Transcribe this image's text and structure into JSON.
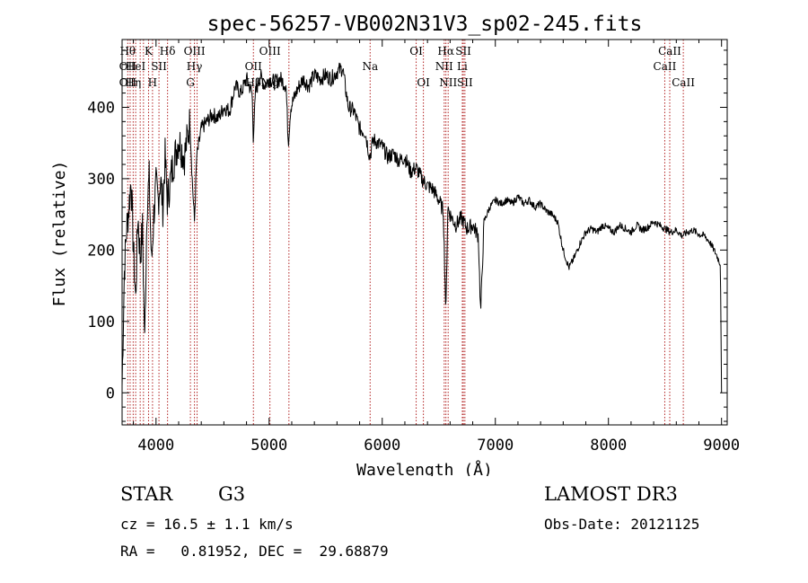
{
  "chart_data": {
    "type": "line",
    "title": "spec-56257-VB002N31V3_sp02-245.fits",
    "xlabel": "Wavelength (Å)",
    "ylabel": "Flux (relative)",
    "xlim": [
      3700,
      9050
    ],
    "ylim": [
      -45,
      495
    ],
    "xticks": [
      4000,
      5000,
      6000,
      7000,
      8000,
      9000
    ],
    "yticks": [
      0,
      100,
      200,
      300,
      400
    ],
    "line_color": "#000000",
    "marker_color": "#b22222",
    "series": [
      {
        "values": [
          [
            3700,
            10
          ],
          [
            3720,
            170
          ],
          [
            3740,
            230
          ],
          [
            3760,
            260
          ],
          [
            3780,
            300
          ],
          [
            3800,
            200
          ],
          [
            3820,
            130
          ],
          [
            3840,
            250
          ],
          [
            3860,
            190
          ],
          [
            3880,
            230
          ],
          [
            3900,
            70
          ],
          [
            3920,
            260
          ],
          [
            3940,
            300
          ],
          [
            3960,
            180
          ],
          [
            3980,
            250
          ],
          [
            4000,
            290
          ],
          [
            4020,
            270
          ],
          [
            4040,
            300
          ],
          [
            4060,
            260
          ],
          [
            4080,
            330
          ],
          [
            4100,
            270
          ],
          [
            4150,
            320
          ],
          [
            4200,
            355
          ],
          [
            4250,
            330
          ],
          [
            4300,
            380
          ],
          [
            4320,
            300
          ],
          [
            4340,
            240
          ],
          [
            4360,
            330
          ],
          [
            4400,
            370
          ],
          [
            4450,
            380
          ],
          [
            4500,
            390
          ],
          [
            4550,
            385
          ],
          [
            4600,
            400
          ],
          [
            4650,
            395
          ],
          [
            4700,
            430
          ],
          [
            4750,
            420
          ],
          [
            4800,
            440
          ],
          [
            4850,
            420
          ],
          [
            4860,
            360
          ],
          [
            4880,
            420
          ],
          [
            4920,
            445
          ],
          [
            4960,
            430
          ],
          [
            5000,
            440
          ],
          [
            5050,
            435
          ],
          [
            5100,
            440
          ],
          [
            5150,
            430
          ],
          [
            5170,
            350
          ],
          [
            5190,
            400
          ],
          [
            5250,
            425
          ],
          [
            5300,
            440
          ],
          [
            5350,
            430
          ],
          [
            5400,
            445
          ],
          [
            5450,
            440
          ],
          [
            5500,
            445
          ],
          [
            5550,
            440
          ],
          [
            5600,
            450
          ],
          [
            5650,
            455
          ],
          [
            5700,
            400
          ],
          [
            5750,
            395
          ],
          [
            5800,
            370
          ],
          [
            5850,
            365
          ],
          [
            5890,
            330
          ],
          [
            5920,
            355
          ],
          [
            6000,
            345
          ],
          [
            6050,
            330
          ],
          [
            6100,
            335
          ],
          [
            6150,
            325
          ],
          [
            6200,
            330
          ],
          [
            6250,
            310
          ],
          [
            6300,
            315
          ],
          [
            6350,
            300
          ],
          [
            6400,
            290
          ],
          [
            6450,
            285
          ],
          [
            6500,
            270
          ],
          [
            6540,
            255
          ],
          [
            6563,
            110
          ],
          [
            6580,
            260
          ],
          [
            6600,
            250
          ],
          [
            6650,
            235
          ],
          [
            6700,
            245
          ],
          [
            6750,
            230
          ],
          [
            6800,
            235
          ],
          [
            6850,
            220
          ],
          [
            6870,
            110
          ],
          [
            6900,
            240
          ],
          [
            6950,
            260
          ],
          [
            7000,
            270
          ],
          [
            7050,
            265
          ],
          [
            7100,
            270
          ],
          [
            7150,
            265
          ],
          [
            7200,
            275
          ],
          [
            7250,
            265
          ],
          [
            7300,
            270
          ],
          [
            7350,
            260
          ],
          [
            7400,
            265
          ],
          [
            7450,
            255
          ],
          [
            7500,
            250
          ],
          [
            7550,
            240
          ],
          [
            7600,
            200
          ],
          [
            7650,
            175
          ],
          [
            7700,
            190
          ],
          [
            7750,
            210
          ],
          [
            7800,
            225
          ],
          [
            7850,
            230
          ],
          [
            7900,
            225
          ],
          [
            7950,
            235
          ],
          [
            8000,
            230
          ],
          [
            8050,
            225
          ],
          [
            8100,
            235
          ],
          [
            8150,
            230
          ],
          [
            8200,
            225
          ],
          [
            8250,
            235
          ],
          [
            8300,
            228
          ],
          [
            8350,
            232
          ],
          [
            8400,
            240
          ],
          [
            8450,
            235
          ],
          [
            8500,
            230
          ],
          [
            8550,
            225
          ],
          [
            8600,
            228
          ],
          [
            8650,
            220
          ],
          [
            8700,
            225
          ],
          [
            8750,
            228
          ],
          [
            8800,
            222
          ],
          [
            8850,
            220
          ],
          [
            8900,
            210
          ],
          [
            8950,
            195
          ],
          [
            8990,
            180
          ],
          [
            9000,
            0
          ]
        ]
      }
    ],
    "lines": [
      {
        "wl": 3750,
        "top": "Hθ",
        "mid": "OII",
        "low": "OII"
      },
      {
        "wl": 3771,
        "top": "",
        "mid": "",
        "low": ""
      },
      {
        "wl": 3798,
        "top": "",
        "mid": "",
        "low": "Hη"
      },
      {
        "wl": 3820,
        "top": "",
        "mid": "HeI",
        "low": ""
      },
      {
        "wl": 3860,
        "top": "",
        "mid": "",
        "low": ""
      },
      {
        "wl": 3889,
        "top": "",
        "mid": "",
        "low": ""
      },
      {
        "wl": 3934,
        "top": "K",
        "mid": "",
        "low": ""
      },
      {
        "wl": 3969,
        "top": "",
        "mid": "",
        "low": "H"
      },
      {
        "wl": 4026,
        "top": "",
        "mid": "SII",
        "low": ""
      },
      {
        "wl": 4102,
        "top": "Hδ",
        "mid": "",
        "low": ""
      },
      {
        "wl": 4304,
        "top": "",
        "mid": "",
        "low": "G"
      },
      {
        "wl": 4340,
        "top": "OIII",
        "mid": "Hγ",
        "low": ""
      },
      {
        "wl": 4363,
        "top": "",
        "mid": "",
        "low": ""
      },
      {
        "wl": 4861,
        "top": "",
        "mid": "OII",
        "low": "Hβ"
      },
      {
        "wl": 5007,
        "top": "OIII",
        "mid": "",
        "low": "Mg"
      },
      {
        "wl": 5175,
        "top": "",
        "mid": "",
        "low": ""
      },
      {
        "wl": 5893,
        "top": "",
        "mid": "Na",
        "low": ""
      },
      {
        "wl": 6300,
        "top": "OI",
        "mid": "",
        "low": ""
      },
      {
        "wl": 6364,
        "top": "",
        "mid": "",
        "low": "OI"
      },
      {
        "wl": 6548,
        "top": "",
        "mid": "NII",
        "low": ""
      },
      {
        "wl": 6563,
        "top": "Hα",
        "mid": "",
        "low": ""
      },
      {
        "wl": 6583,
        "top": "",
        "mid": "",
        "low": "NII"
      },
      {
        "wl": 6708,
        "top": "",
        "mid": "Li",
        "low": ""
      },
      {
        "wl": 6717,
        "top": "SII",
        "mid": "",
        "low": ""
      },
      {
        "wl": 6731,
        "top": "",
        "mid": "",
        "low": "SII"
      },
      {
        "wl": 8498,
        "top": "",
        "mid": "CaII",
        "low": ""
      },
      {
        "wl": 8542,
        "top": "CaII",
        "mid": "",
        "low": ""
      },
      {
        "wl": 8662,
        "top": "",
        "mid": "",
        "low": "CaII"
      }
    ]
  },
  "info": {
    "class": "STAR",
    "subclass": "G3",
    "survey": "LAMOST DR3",
    "cz": "cz = 16.5 ± 1.1 km/s",
    "obs_date": "Obs-Date: 20121125",
    "radec": "RA =   0.81952, DEC =  29.68879"
  }
}
